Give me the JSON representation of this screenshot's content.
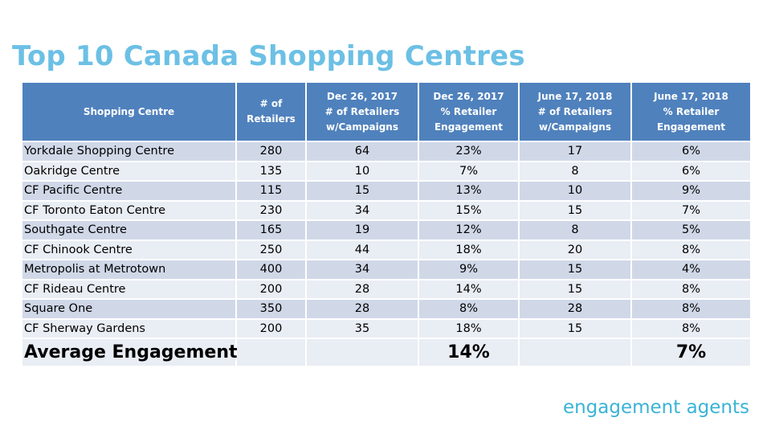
{
  "title": "Top 10 Canada Shopping Centres",
  "brand": "engagement agents",
  "colors": {
    "title": "#6cc0e5",
    "header_bg": "#4f81bd",
    "row_dark": "#d0d8e8",
    "row_light": "#e9edf4",
    "brand": "#3ab3d6"
  },
  "table": {
    "headers": [
      [
        "Shopping Centre"
      ],
      [
        "# of",
        "Retailers"
      ],
      [
        "Dec 26, 2017",
        "# of Retailers",
        "w/Campaigns"
      ],
      [
        "Dec 26, 2017",
        "% Retailer",
        "Engagement"
      ],
      [
        "June 17, 2018",
        "# of Retailers",
        "w/Campaigns"
      ],
      [
        "June 17, 2018",
        "% Retailer",
        "Engagement"
      ]
    ],
    "rows": [
      [
        "Yorkdale Shopping Centre",
        "280",
        "64",
        "23%",
        "17",
        "6%"
      ],
      [
        "Oakridge Centre",
        "135",
        "10",
        "7%",
        "8",
        "6%"
      ],
      [
        "CF Pacific Centre",
        "115",
        "15",
        "13%",
        "10",
        "9%"
      ],
      [
        "CF Toronto Eaton Centre",
        "230",
        "34",
        "15%",
        "15",
        "7%"
      ],
      [
        "Southgate Centre",
        "165",
        "19",
        "12%",
        "8",
        "5%"
      ],
      [
        "CF Chinook Centre",
        "250",
        "44",
        "18%",
        "20",
        "8%"
      ],
      [
        "Metropolis at Metrotown",
        "400",
        "34",
        "9%",
        "15",
        "4%"
      ],
      [
        "CF Rideau Centre",
        "200",
        "28",
        "14%",
        "15",
        "8%"
      ],
      [
        "Square One",
        "350",
        "28",
        "8%",
        "28",
        "8%"
      ],
      [
        "CF Sherway Gardens",
        "200",
        "35",
        "18%",
        "15",
        "8%"
      ]
    ],
    "average": [
      "Average Engagement",
      "",
      "",
      "14%",
      "",
      "7%"
    ]
  }
}
